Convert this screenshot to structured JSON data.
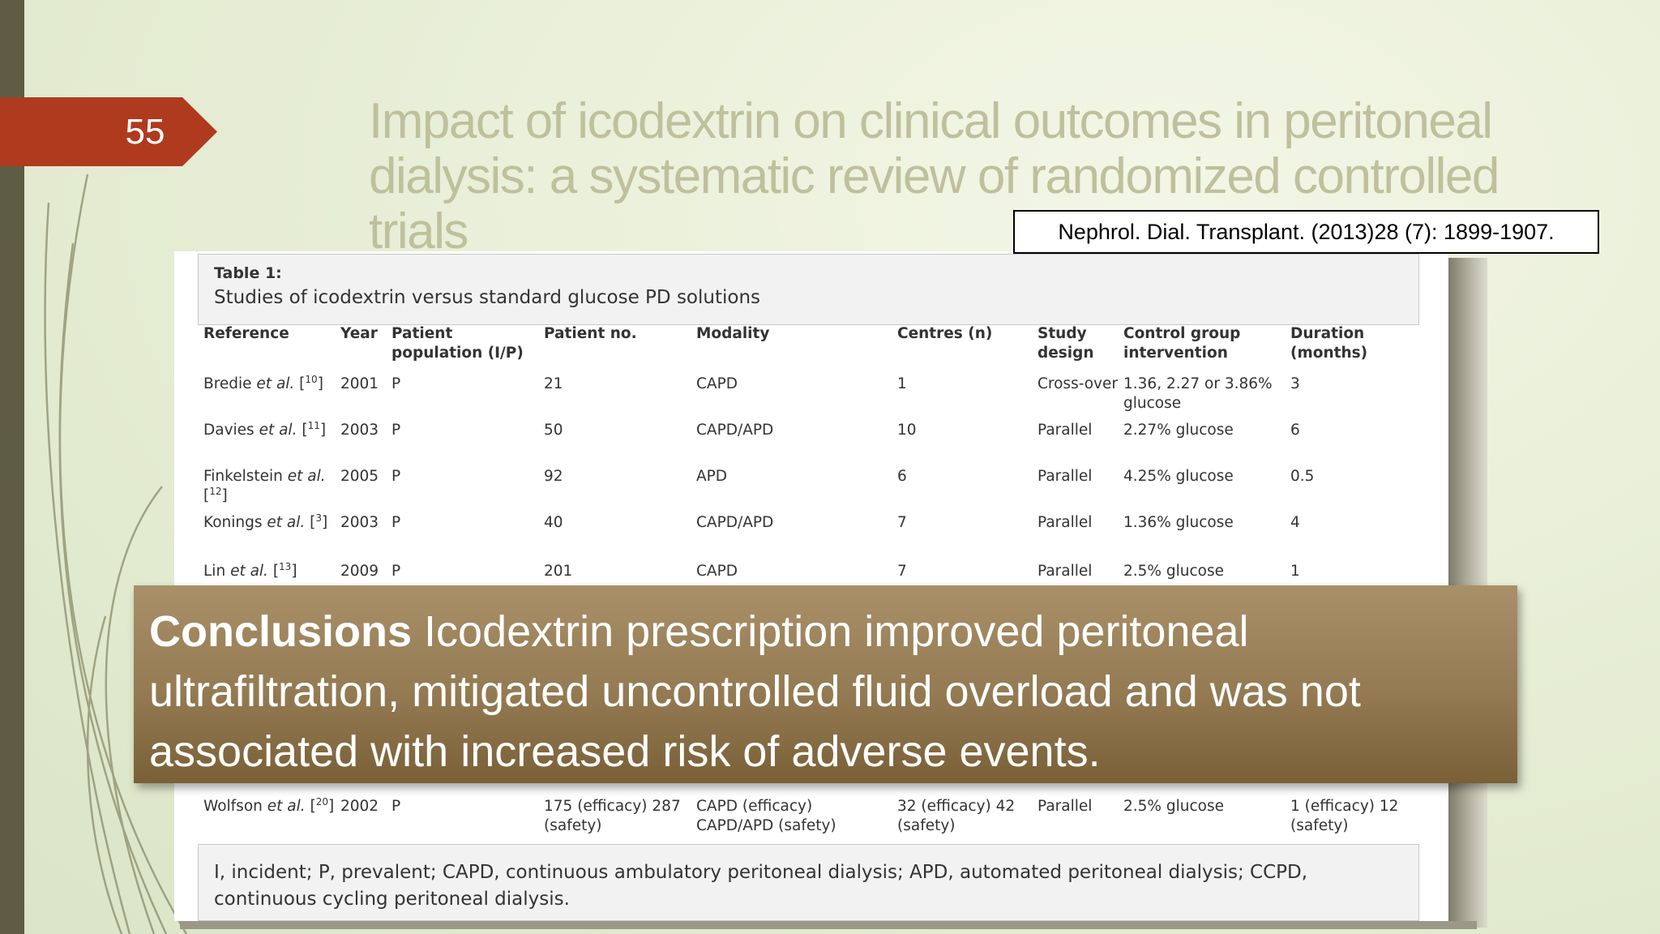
{
  "slide_number": "55",
  "title": "Impact of icodextrin on clinical outcomes in peritoneal dialysis: a systematic review of randomized controlled trials",
  "citation": "Nephrol. Dial. Transplant. (2013)28 (7): 1899-1907.",
  "table": {
    "caption_label": "Table 1:",
    "caption": "Studies of icodextrin versus standard glucose PD solutions",
    "headers": [
      "Reference",
      "Year",
      "Patient population (I/P)",
      "Patient no.",
      "Modality",
      "Centres (n)",
      "Study design",
      "Control group intervention",
      "Duration (months)"
    ],
    "rows": [
      [
        [
          {
            "text": "Bredie "
          },
          {
            "text": "et al.",
            "style": "italic"
          },
          {
            "text": " ["
          },
          {
            "text": "10",
            "style": "sup"
          },
          {
            "text": "]"
          }
        ],
        "2001",
        "P",
        "21",
        "CAPD",
        "1",
        "Cross-over",
        "1.36, 2.27 or 3.86% glucose",
        "3"
      ],
      [
        [
          {
            "text": "Davies "
          },
          {
            "text": "et al.",
            "style": "italic"
          },
          {
            "text": " ["
          },
          {
            "text": "11",
            "style": "sup"
          },
          {
            "text": "]"
          }
        ],
        "2003",
        "P",
        "50",
        "CAPD/APD",
        "10",
        "Parallel",
        "2.27% glucose",
        "6"
      ],
      [
        [
          {
            "text": "Finkelstein "
          },
          {
            "text": "et al.",
            "style": "italic"
          },
          {
            "text": " ["
          },
          {
            "text": "12",
            "style": "sup"
          },
          {
            "text": "]"
          }
        ],
        "2005",
        "P",
        "92",
        "APD",
        "6",
        "Parallel",
        "4.25% glucose",
        "0.5"
      ],
      [
        [
          {
            "text": "Konings "
          },
          {
            "text": "et al.",
            "style": "italic"
          },
          {
            "text": " ["
          },
          {
            "text": "3",
            "style": "sup"
          },
          {
            "text": "]"
          }
        ],
        "2003",
        "P",
        "40",
        "CAPD/APD",
        "7",
        "Parallel",
        "1.36% glucose",
        "4"
      ],
      [
        [
          {
            "text": "Lin "
          },
          {
            "text": "et al.",
            "style": "italic"
          },
          {
            "text": " ["
          },
          {
            "text": "13",
            "style": "sup"
          },
          {
            "text": "]"
          }
        ],
        "2009",
        "P",
        "201",
        "CAPD",
        "7",
        "Parallel",
        "2.5% glucose",
        "1"
      ],
      [
        [
          {
            "text": "Wolfson "
          },
          {
            "text": "et al.",
            "style": "italic"
          },
          {
            "text": " ["
          },
          {
            "text": "20",
            "style": "sup"
          },
          {
            "text": "]"
          }
        ],
        "2002",
        "P",
        "175 (efficacy) 287 (safety)",
        "CAPD (efficacy) CAPD/APD (safety)",
        "32 (efficacy) 42 (safety)",
        "Parallel",
        "2.5% glucose",
        "1 (efficacy) 12 (safety)"
      ]
    ],
    "footnote": "I, incident; P, prevalent; CAPD, continuous ambulatory peritoneal dialysis; APD, automated peritoneal dialysis; CCPD, continuous cycling peritoneal dialysis."
  },
  "conclusion": {
    "lead": "Conclusions",
    "text": "Icodextrin prescription improved peritoneal ultrafiltration, mitigated uncontrolled fluid overload and was not associated with increased risk of adverse events."
  }
}
